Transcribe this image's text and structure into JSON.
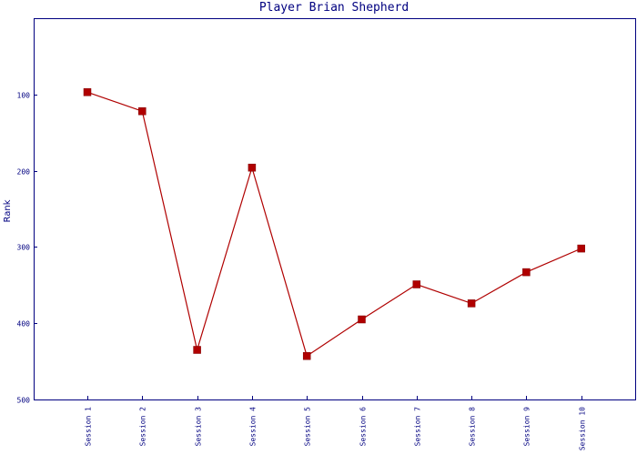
{
  "chart_data": {
    "type": "line",
    "title": "Player Brian Shepherd",
    "xlabel": "",
    "ylabel": "Rank",
    "y_inverted": true,
    "ylim": [
      0,
      500
    ],
    "yticks": [
      100,
      200,
      300,
      400,
      500
    ],
    "categories": [
      "Session 1",
      "Session 2",
      "Session 3",
      "Session 4",
      "Session 5",
      "Session 6",
      "Session 7",
      "Session 8",
      "Session 9",
      "Session 10"
    ],
    "series": [
      {
        "values": [
          97,
          122,
          435,
          196,
          443,
          395,
          349,
          374,
          333,
          302
        ],
        "color": "#b00000",
        "marker": "square"
      }
    ],
    "grid": false,
    "colors": {
      "frame": "#000080",
      "text": "#000080",
      "line": "#b00000"
    }
  }
}
